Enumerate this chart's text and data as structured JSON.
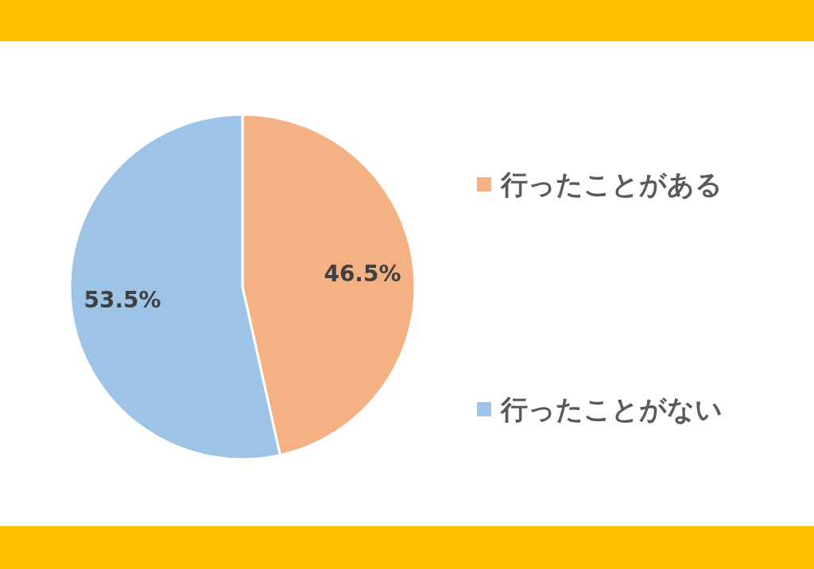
{
  "chart_data": {
    "type": "pie",
    "categories": [
      "行ったことがある",
      "行ったことがない"
    ],
    "values": [
      46.5,
      53.5
    ],
    "colors": [
      "#f4b183",
      "#9dc3e6"
    ],
    "value_labels": [
      "46.5%",
      "53.5%"
    ],
    "legend": "right"
  }
}
